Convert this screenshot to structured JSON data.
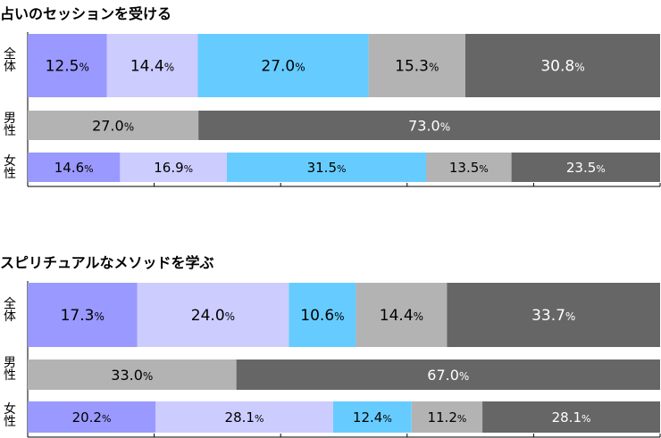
{
  "chart_data": [
    {
      "type": "bar",
      "orientation": "horizontal",
      "stacked": "100%",
      "title": "占いのセッションを受ける",
      "categories": [
        [
          "全",
          "体"
        ],
        [
          "男",
          "性"
        ],
        [
          "女",
          "性"
        ]
      ],
      "xlim": [
        0,
        100
      ],
      "grid": false,
      "segments": [
        [
          {
            "value": 12.5,
            "label": "12.5%",
            "color": "#9999ff",
            "text_color": "#000000"
          },
          {
            "value": 14.4,
            "label": "14.4%",
            "color": "#ccccff",
            "text_color": "#000000"
          },
          {
            "value": 27.0,
            "label": "27.0%",
            "color": "#66ccff",
            "text_color": "#000000"
          },
          {
            "value": 15.3,
            "label": "15.3%",
            "color": "#b3b3b3",
            "text_color": "#000000"
          },
          {
            "value": 30.8,
            "label": "30.8%",
            "color": "#666666",
            "text_color": "#ffffff"
          }
        ],
        [
          {
            "value": 27.0,
            "label": "27.0%",
            "color": "#b3b3b3",
            "text_color": "#000000"
          },
          {
            "value": 73.0,
            "label": "73.0%",
            "color": "#666666",
            "text_color": "#ffffff"
          }
        ],
        [
          {
            "value": 14.6,
            "label": "14.6%",
            "color": "#9999ff",
            "text_color": "#000000"
          },
          {
            "value": 16.9,
            "label": "16.9%",
            "color": "#ccccff",
            "text_color": "#000000"
          },
          {
            "value": 31.5,
            "label": "31.5%",
            "color": "#66ccff",
            "text_color": "#000000"
          },
          {
            "value": 13.5,
            "label": "13.5%",
            "color": "#b3b3b3",
            "text_color": "#000000"
          },
          {
            "value": 23.5,
            "label": "23.5%",
            "color": "#666666",
            "text_color": "#ffffff"
          }
        ]
      ]
    },
    {
      "type": "bar",
      "orientation": "horizontal",
      "stacked": "100%",
      "title": "スピリチュアルなメソッドを学ぶ",
      "categories": [
        [
          "全",
          "体"
        ],
        [
          "男",
          "性"
        ],
        [
          "女",
          "性"
        ]
      ],
      "xlim": [
        0,
        100
      ],
      "grid": false,
      "segments": [
        [
          {
            "value": 17.3,
            "label": "17.3%",
            "color": "#9999ff",
            "text_color": "#000000"
          },
          {
            "value": 24.0,
            "label": "24.0%",
            "color": "#ccccff",
            "text_color": "#000000"
          },
          {
            "value": 10.6,
            "label": "10.6%",
            "color": "#66ccff",
            "text_color": "#000000"
          },
          {
            "value": 14.4,
            "label": "14.4%",
            "color": "#b3b3b3",
            "text_color": "#000000"
          },
          {
            "value": 33.7,
            "label": "33.7%",
            "color": "#666666",
            "text_color": "#ffffff"
          }
        ],
        [
          {
            "value": 33.0,
            "label": "33.0%",
            "color": "#b3b3b3",
            "text_color": "#000000"
          },
          {
            "value": 67.0,
            "label": "67.0%",
            "color": "#666666",
            "text_color": "#ffffff"
          }
        ],
        [
          {
            "value": 20.2,
            "label": "20.2%",
            "color": "#9999ff",
            "text_color": "#000000"
          },
          {
            "value": 28.1,
            "label": "28.1%",
            "color": "#ccccff",
            "text_color": "#000000"
          },
          {
            "value": 12.4,
            "label": "12.4%",
            "color": "#66ccff",
            "text_color": "#000000"
          },
          {
            "value": 11.2,
            "label": "11.2%",
            "color": "#b3b3b3",
            "text_color": "#000000"
          },
          {
            "value": 28.1,
            "label": "28.1%",
            "color": "#666666",
            "text_color": "#ffffff"
          }
        ]
      ]
    }
  ]
}
